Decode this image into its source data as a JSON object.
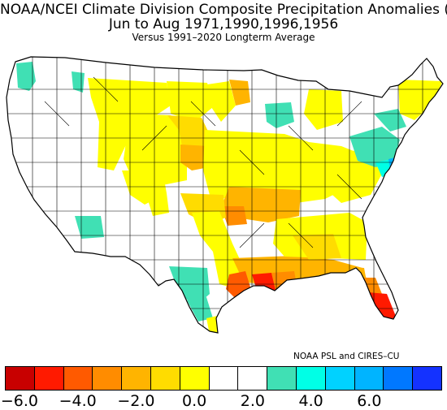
{
  "title": {
    "line1": "NOAA/NCEI Climate Division Composite Precipitation Anomalies (in)",
    "line2": "Jun to Aug   1971,1990,1996,1956",
    "line3": "Versus 1991–2020 Longterm Average"
  },
  "credit": "NOAA PSL and CIRES–CU",
  "legend": {
    "colors": [
      "#c80000",
      "#ff1a00",
      "#ff5a00",
      "#ff8c00",
      "#ffb400",
      "#ffdc00",
      "#ffff00",
      "#ffffff",
      "#ffffff",
      "#40e0b4",
      "#00ffe6",
      "#00d2ff",
      "#00b4ff",
      "#0078ff",
      "#1432ff"
    ],
    "tick_labels": [
      "−6.0",
      "−4.0",
      "−2.0",
      "0.0",
      "2.0",
      "4.0",
      "6.0"
    ]
  },
  "map_palette": {
    "dry_extreme": "#ff1a00",
    "dry_strong": "#ff8c00",
    "dry_moderate": "#ffb400",
    "dry_light": "#ffdc00",
    "dry_slight": "#ffff00",
    "neutral": "#ffffff",
    "wet_slight": "#40e0b4",
    "wet_moderate": "#00ffe6",
    "wet_strong": "#00b4ff"
  }
}
